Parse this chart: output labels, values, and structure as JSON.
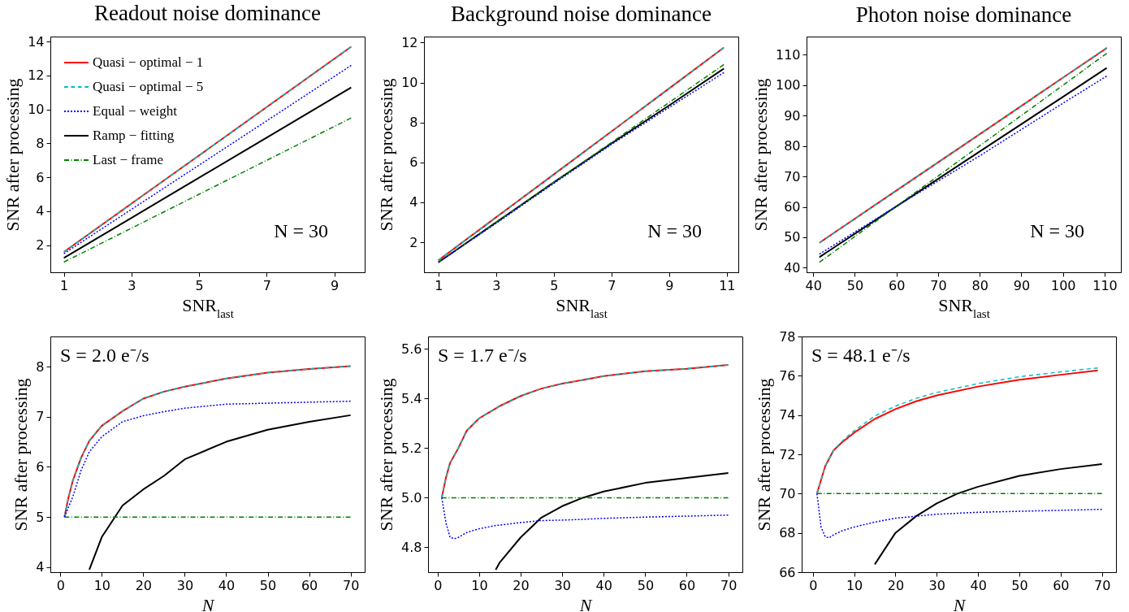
{
  "chart_data": [
    {
      "type": "line",
      "title": "Readout noise dominance",
      "xlabel": "SNR$_{last}$",
      "ylabel": "SNR after processing",
      "annotations": [
        "N = 30"
      ],
      "x": [
        1,
        3,
        5,
        7,
        9.5
      ],
      "xlim": [
        0.6,
        9.9
      ],
      "xticks": [
        1,
        3,
        5,
        7,
        9
      ],
      "ylim": [
        0.4,
        14.3
      ],
      "yticks": [
        2,
        4,
        6,
        8,
        10,
        12,
        14
      ],
      "legend": "top left",
      "series": [
        {
          "name": "Quasi − optimal − 1",
          "color": "#ff0000",
          "line_style": "solid",
          "values": [
            1.6,
            4.45,
            7.29,
            10.14,
            13.7
          ]
        },
        {
          "name": "Quasi − optimal − 5",
          "color": "#00bfbf",
          "line_style": "dashed",
          "values": [
            1.6,
            4.45,
            7.29,
            10.14,
            13.7
          ]
        },
        {
          "name": "Equal − weight",
          "color": "#0000ff",
          "line_style": "dotted",
          "values": [
            1.5,
            4.11,
            6.72,
            9.33,
            12.6
          ]
        },
        {
          "name": "Ramp − fitting",
          "color": "#000000",
          "line_style": "solid",
          "values": [
            1.25,
            3.61,
            5.98,
            8.34,
            11.3
          ]
        },
        {
          "name": "Last − frame",
          "color": "#008000",
          "line_style": "dashdot",
          "values": [
            1.0,
            3.0,
            5.0,
            7.0,
            9.5
          ]
        }
      ]
    },
    {
      "type": "line",
      "title": "Background noise dominance",
      "xlabel": "SNR$_{last}$",
      "ylabel": "SNR after processing",
      "annotations": [
        "N = 30"
      ],
      "x": [
        1,
        3,
        5,
        7,
        9,
        10.9
      ],
      "xlim": [
        0.5,
        11.4
      ],
      "xticks": [
        1,
        3,
        5,
        7,
        9,
        11
      ],
      "ylim": [
        0.5,
        12.3
      ],
      "yticks": [
        2,
        4,
        6,
        8,
        10,
        12
      ],
      "series": [
        {
          "color": "#ff0000",
          "line_style": "solid",
          "values": [
            1.1,
            3.25,
            5.4,
            7.55,
            9.7,
            11.75
          ]
        },
        {
          "color": "#00bfbf",
          "line_style": "dashed",
          "values": [
            1.1,
            3.25,
            5.4,
            7.55,
            9.7,
            11.75
          ]
        },
        {
          "color": "#0000ff",
          "line_style": "dotted",
          "values": [
            1.0,
            2.95,
            4.95,
            6.9,
            8.75,
            10.5
          ]
        },
        {
          "color": "#000000",
          "line_style": "solid",
          "values": [
            1.0,
            3.0,
            5.0,
            6.95,
            8.85,
            10.7
          ]
        },
        {
          "color": "#008000",
          "line_style": "dashdot",
          "values": [
            1.0,
            3.0,
            5.0,
            7.0,
            9.0,
            10.9
          ]
        }
      ]
    },
    {
      "type": "line",
      "title": "Photon noise dominance",
      "xlabel": "SNR$_{last}$",
      "ylabel": "SNR after processing",
      "annotations": [
        "N = 30"
      ],
      "x": [
        41.5,
        60,
        80,
        100,
        110.5
      ],
      "xlim": [
        38.4,
        113.9
      ],
      "xticks": [
        40,
        50,
        60,
        70,
        80,
        90,
        100,
        110
      ],
      "ylim": [
        38.5,
        116
      ],
      "yticks": [
        40,
        50,
        60,
        70,
        80,
        90,
        100,
        110
      ],
      "series": [
        {
          "color": "#ff0000",
          "line_style": "solid",
          "values": [
            48.2,
            65.4,
            83.9,
            102.5,
            112.2
          ]
        },
        {
          "color": "#00bfbf",
          "line_style": "dashed",
          "values": [
            48.2,
            65.4,
            83.9,
            102.5,
            112.4
          ]
        },
        {
          "color": "#0000ff",
          "line_style": "dotted",
          "values": [
            44.5,
            60.2,
            76.8,
            94.1,
            103.0
          ]
        },
        {
          "color": "#000000",
          "line_style": "solid",
          "values": [
            43.5,
            60.2,
            78.2,
            96.2,
            105.7
          ]
        },
        {
          "color": "#008000",
          "line_style": "dashdot",
          "values": [
            41.8,
            60.2,
            80.1,
            100.0,
            110.5
          ]
        }
      ]
    },
    {
      "type": "line",
      "xlabel": "N",
      "ylabel": "SNR after processing",
      "annotations": [
        "S = 2.0 e⁻/s"
      ],
      "x": [
        1,
        2,
        3,
        5,
        7,
        10,
        15,
        20,
        25,
        30,
        40,
        50,
        60,
        70
      ],
      "xlim": [
        -2.4,
        73.4
      ],
      "xticks": [
        0,
        10,
        20,
        30,
        40,
        50,
        60,
        70
      ],
      "ylim": [
        3.9,
        8.6
      ],
      "yticks": [
        4,
        5,
        6,
        7,
        8
      ],
      "series": [
        {
          "color": "#ff0000",
          "line_style": "solid",
          "values": [
            5.0,
            5.4,
            5.72,
            6.18,
            6.52,
            6.82,
            7.11,
            7.36,
            7.5,
            7.6,
            7.76,
            7.88,
            7.95,
            8.01
          ]
        },
        {
          "color": "#00bfbf",
          "line_style": "dashed",
          "values": [
            5.0,
            5.4,
            5.72,
            6.18,
            6.52,
            6.82,
            7.11,
            7.36,
            7.5,
            7.6,
            7.76,
            7.88,
            7.95,
            8.01
          ]
        },
        {
          "color": "#0000ff",
          "line_style": "dotted",
          "values": [
            5.0,
            5.2,
            5.4,
            5.93,
            6.3,
            6.6,
            6.9,
            7.02,
            7.1,
            7.17,
            7.25,
            7.27,
            7.29,
            7.31
          ]
        },
        {
          "color": "#000000",
          "line_style": "solid",
          "values": [
            null,
            null,
            null,
            null,
            3.95,
            4.6,
            5.23,
            5.55,
            5.82,
            6.15,
            6.5,
            6.74,
            6.9,
            7.03
          ]
        },
        {
          "color": "#008000",
          "line_style": "dashdot",
          "values": [
            5.0,
            5.0,
            5.0,
            5.0,
            5.0,
            5.0,
            5.0,
            5.0,
            5.0,
            5.0,
            5.0,
            5.0,
            5.0,
            5.0
          ]
        }
      ]
    },
    {
      "type": "line",
      "xlabel": "N",
      "ylabel": "SNR after processing",
      "annotations": [
        "S = 1.7 e⁻/s"
      ],
      "x": [
        1,
        2,
        3,
        4,
        5,
        7,
        10,
        14,
        15,
        20,
        25,
        30,
        35,
        40,
        50,
        60,
        70
      ],
      "xlim": [
        -2.3,
        73.4
      ],
      "xticks": [
        0,
        10,
        20,
        30,
        40,
        50,
        60,
        70
      ],
      "ylim": [
        4.7,
        5.65
      ],
      "yticks": [
        4.8,
        {
          "value": 5,
          "label": "5.0"
        },
        5.2,
        5.4,
        5.6
      ],
      "series": [
        {
          "color": "#ff0000",
          "line_style": "solid",
          "values": [
            5.0,
            5.08,
            5.14,
            5.17,
            5.2,
            5.27,
            5.32,
            5.36,
            5.37,
            5.41,
            5.44,
            5.46,
            5.475,
            5.49,
            5.51,
            5.52,
            5.535
          ]
        },
        {
          "color": "#00bfbf",
          "line_style": "dashed",
          "values": [
            5.0,
            5.08,
            5.14,
            5.17,
            5.2,
            5.27,
            5.32,
            5.36,
            5.37,
            5.41,
            5.44,
            5.46,
            5.475,
            5.49,
            5.51,
            5.52,
            5.535
          ]
        },
        {
          "color": "#0000ff",
          "line_style": "dotted",
          "values": [
            5.0,
            4.9,
            4.84,
            4.835,
            4.84,
            4.86,
            4.875,
            4.888,
            4.89,
            4.9,
            4.908,
            4.91,
            4.913,
            4.917,
            4.922,
            4.926,
            4.93
          ]
        },
        {
          "color": "#000000",
          "line_style": "solid",
          "values": [
            null,
            null,
            null,
            null,
            null,
            null,
            null,
            4.71,
            4.74,
            4.84,
            4.92,
            4.966,
            5.0,
            5.025,
            5.06,
            5.08,
            5.1
          ]
        },
        {
          "color": "#008000",
          "line_style": "dashdot",
          "values": [
            5.0,
            5.0,
            5.0,
            5.0,
            5.0,
            5.0,
            5.0,
            5.0,
            5.0,
            5.0,
            5.0,
            5.0,
            5.0,
            5.0,
            5.0,
            5.0,
            5.0
          ]
        }
      ]
    },
    {
      "type": "line",
      "xlabel": "N",
      "ylabel": "SNR after processing",
      "annotations": [
        "S = 48.1 e⁻/s"
      ],
      "x": [
        1,
        2,
        3,
        4,
        5,
        7,
        10,
        15,
        20,
        25,
        30,
        35,
        40,
        50,
        60,
        70
      ],
      "xlim": [
        -2.7,
        73.4
      ],
      "xticks": [
        0,
        10,
        20,
        30,
        40,
        50,
        60,
        70
      ],
      "ylim": [
        66,
        78
      ],
      "yticks": [
        66,
        68,
        70,
        72,
        74,
        76,
        78
      ],
      "series": [
        {
          "color": "#ff0000",
          "line_style": "solid",
          "x": [
            1,
            2,
            3,
            5,
            7,
            10,
            15,
            20,
            25,
            30,
            40,
            50,
            60,
            69
          ],
          "values": [
            70,
            70.7,
            71.4,
            72.2,
            72.6,
            73.1,
            73.8,
            74.3,
            74.7,
            75.0,
            75.45,
            75.8,
            76.05,
            76.27
          ]
        },
        {
          "color": "#00bfbf",
          "line_style": "dashed",
          "x": [
            1,
            2,
            3,
            5,
            7,
            10,
            15,
            20,
            25,
            30,
            40,
            50,
            60,
            69
          ],
          "values": [
            70,
            70.7,
            71.4,
            72.2,
            72.65,
            73.2,
            73.95,
            74.45,
            74.85,
            75.15,
            75.6,
            75.95,
            76.2,
            76.4
          ]
        },
        {
          "color": "#0000ff",
          "line_style": "dotted",
          "values": [
            70,
            68.3,
            67.8,
            67.75,
            67.9,
            68.1,
            68.3,
            68.55,
            68.75,
            68.85,
            68.95,
            69.0,
            69.05,
            69.1,
            69.15,
            69.2
          ]
        },
        {
          "color": "#000000",
          "line_style": "solid",
          "values": [
            null,
            null,
            null,
            null,
            null,
            null,
            null,
            66.4,
            68.0,
            68.85,
            69.5,
            70.0,
            70.35,
            70.9,
            71.25,
            71.5
          ]
        },
        {
          "color": "#008000",
          "line_style": "dashdot",
          "values": [
            70,
            70,
            70,
            70,
            70,
            70,
            70,
            70,
            70,
            70,
            70,
            70,
            70,
            70,
            70,
            70
          ]
        }
      ]
    }
  ]
}
